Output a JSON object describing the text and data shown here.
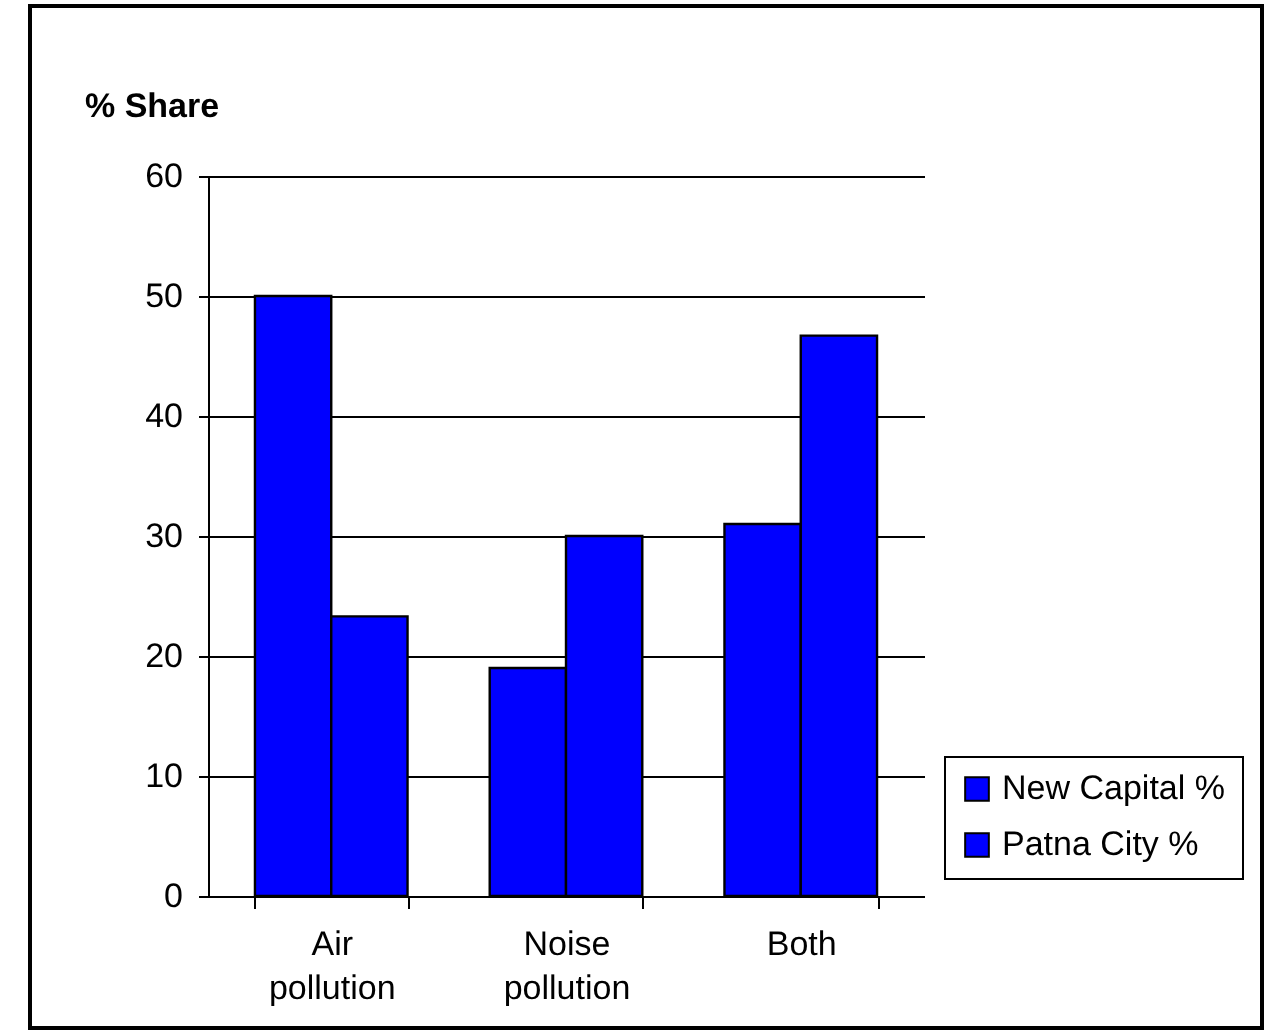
{
  "chart_data": {
    "type": "bar",
    "ylabel": "% Share",
    "categories": [
      "Air pollution",
      "Noise pollution",
      "Both"
    ],
    "series": [
      {
        "name": "New Capital %",
        "color": "#0000ff",
        "values": [
          50,
          19,
          31
        ]
      },
      {
        "name": "Patna City %",
        "color": "#0000ff",
        "values": [
          23.3,
          30,
          46.7
        ]
      }
    ],
    "ylim": [
      0,
      60
    ],
    "yticks": [
      0,
      10,
      20,
      30,
      40,
      50,
      60
    ],
    "grid": "y",
    "legend": "right"
  }
}
